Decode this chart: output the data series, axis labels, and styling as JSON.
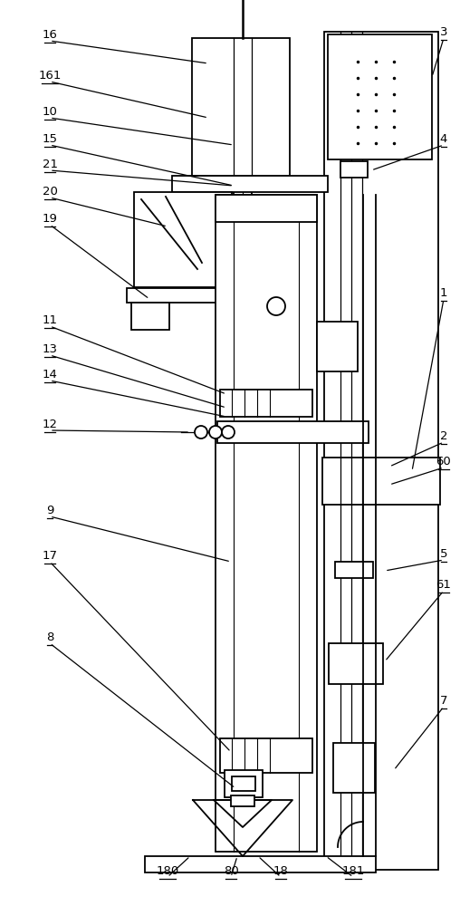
{
  "background_color": "#ffffff",
  "line_color": "#000000",
  "lw": 1.3,
  "fig_width": 5.08,
  "fig_height": 10.0,
  "dpi": 100
}
